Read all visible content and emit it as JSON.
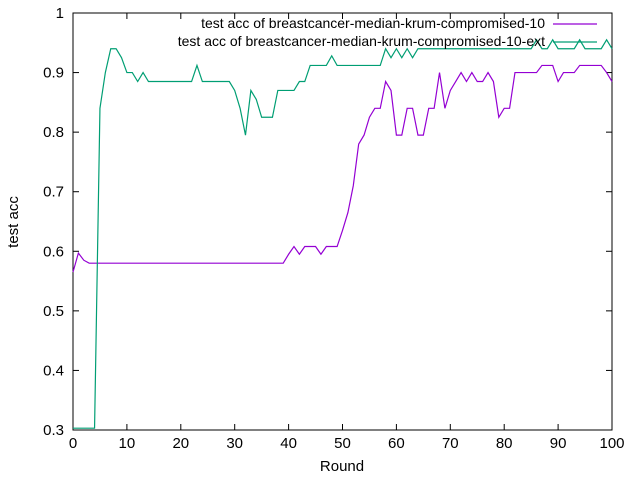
{
  "chart_data": {
    "type": "line",
    "title": "",
    "xlabel": "Round",
    "ylabel": "test acc",
    "xlim": [
      0,
      100
    ],
    "ylim": [
      0.3,
      1.0
    ],
    "xticks": [
      "0",
      "10",
      "20",
      "30",
      "40",
      "50",
      "60",
      "70",
      "80",
      "90",
      "100"
    ],
    "yticks": [
      "0.3",
      "0.4",
      "0.5",
      "0.6",
      "0.7",
      "0.8",
      "0.9",
      "1"
    ],
    "grid": false,
    "legend_position": "top-right",
    "series": [
      {
        "name": "test acc of breastcancer-median-krum-compromised-10",
        "color": "#9400d3",
        "x": [
          0,
          1,
          2,
          3,
          4,
          5,
          6,
          7,
          8,
          9,
          10,
          11,
          12,
          13,
          14,
          15,
          16,
          17,
          18,
          19,
          20,
          21,
          22,
          23,
          24,
          25,
          26,
          27,
          28,
          29,
          30,
          31,
          32,
          33,
          34,
          35,
          36,
          37,
          38,
          39,
          40,
          41,
          42,
          43,
          44,
          45,
          46,
          47,
          48,
          49,
          50,
          51,
          52,
          53,
          54,
          55,
          56,
          57,
          58,
          59,
          60,
          61,
          62,
          63,
          64,
          65,
          66,
          67,
          68,
          69,
          70,
          71,
          72,
          73,
          74,
          75,
          76,
          77,
          78,
          79,
          80,
          81,
          82,
          83,
          84,
          85,
          86,
          87,
          88,
          89,
          90,
          91,
          92,
          93,
          94,
          95,
          96,
          97,
          98,
          99,
          100
        ],
        "y": [
          0.565,
          0.597,
          0.585,
          0.58,
          0.58,
          0.58,
          0.58,
          0.58,
          0.58,
          0.58,
          0.58,
          0.58,
          0.58,
          0.58,
          0.58,
          0.58,
          0.58,
          0.58,
          0.58,
          0.58,
          0.58,
          0.58,
          0.58,
          0.58,
          0.58,
          0.58,
          0.58,
          0.58,
          0.58,
          0.58,
          0.58,
          0.58,
          0.58,
          0.58,
          0.58,
          0.58,
          0.58,
          0.58,
          0.58,
          0.58,
          0.595,
          0.608,
          0.595,
          0.608,
          0.608,
          0.608,
          0.595,
          0.608,
          0.608,
          0.608,
          0.635,
          0.665,
          0.71,
          0.78,
          0.795,
          0.825,
          0.84,
          0.84,
          0.885,
          0.87,
          0.795,
          0.795,
          0.84,
          0.84,
          0.795,
          0.795,
          0.84,
          0.84,
          0.9,
          0.84,
          0.87,
          0.885,
          0.9,
          0.885,
          0.9,
          0.885,
          0.885,
          0.9,
          0.885,
          0.825,
          0.84,
          0.84,
          0.9,
          0.9,
          0.9,
          0.9,
          0.9,
          0.912,
          0.912,
          0.912,
          0.885,
          0.9,
          0.9,
          0.9,
          0.912,
          0.912,
          0.912,
          0.912,
          0.912,
          0.9,
          0.885
        ]
      },
      {
        "name": "test acc of breastcancer-median-krum-compromised-10-ext",
        "color": "#009e73",
        "x": [
          0,
          1,
          2,
          3,
          4,
          5,
          6,
          7,
          8,
          9,
          10,
          11,
          12,
          13,
          14,
          15,
          16,
          17,
          18,
          19,
          20,
          21,
          22,
          23,
          24,
          25,
          26,
          27,
          28,
          29,
          30,
          31,
          32,
          33,
          34,
          35,
          36,
          37,
          38,
          39,
          40,
          41,
          42,
          43,
          44,
          45,
          46,
          47,
          48,
          49,
          50,
          51,
          52,
          53,
          54,
          55,
          56,
          57,
          58,
          59,
          60,
          61,
          62,
          63,
          64,
          65,
          66,
          67,
          68,
          69,
          70,
          71,
          72,
          73,
          74,
          75,
          76,
          77,
          78,
          79,
          80,
          81,
          82,
          83,
          84,
          85,
          86,
          87,
          88,
          89,
          90,
          91,
          92,
          93,
          94,
          95,
          96,
          97,
          98,
          99,
          100
        ],
        "y": [
          0.303,
          0.303,
          0.303,
          0.303,
          0.303,
          0.84,
          0.9,
          0.94,
          0.94,
          0.925,
          0.9,
          0.9,
          0.885,
          0.9,
          0.885,
          0.885,
          0.885,
          0.885,
          0.885,
          0.885,
          0.885,
          0.885,
          0.885,
          0.912,
          0.885,
          0.885,
          0.885,
          0.885,
          0.885,
          0.885,
          0.87,
          0.84,
          0.795,
          0.87,
          0.855,
          0.825,
          0.825,
          0.825,
          0.87,
          0.87,
          0.87,
          0.87,
          0.885,
          0.885,
          0.912,
          0.912,
          0.912,
          0.912,
          0.928,
          0.912,
          0.912,
          0.912,
          0.912,
          0.912,
          0.912,
          0.912,
          0.912,
          0.912,
          0.94,
          0.925,
          0.94,
          0.925,
          0.94,
          0.925,
          0.94,
          0.94,
          0.94,
          0.94,
          0.94,
          0.94,
          0.94,
          0.94,
          0.94,
          0.94,
          0.94,
          0.94,
          0.94,
          0.94,
          0.94,
          0.94,
          0.94,
          0.94,
          0.94,
          0.94,
          0.94,
          0.94,
          0.955,
          0.94,
          0.94,
          0.955,
          0.94,
          0.94,
          0.94,
          0.94,
          0.955,
          0.94,
          0.94,
          0.94,
          0.94,
          0.955,
          0.94
        ]
      }
    ]
  }
}
